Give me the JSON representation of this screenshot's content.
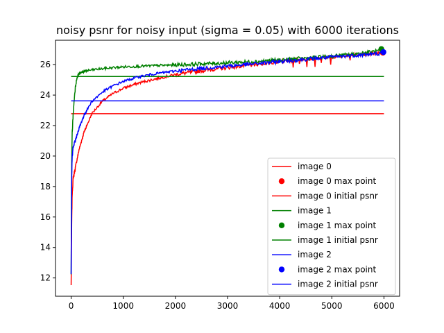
{
  "chart_data": {
    "type": "line",
    "title": "noisy psnr for noisy input (sigma = 0.05) with 6000 iterations",
    "xlabel": "",
    "ylabel": "",
    "xlim": [
      -300,
      6300
    ],
    "ylim": [
      10.8,
      27.6
    ],
    "xticks": [
      0,
      1000,
      2000,
      3000,
      4000,
      5000,
      6000
    ],
    "yticks": [
      12,
      14,
      16,
      18,
      20,
      22,
      24,
      26
    ],
    "grid": false,
    "legend_position": "lower-right",
    "series": [
      {
        "name": "image 0",
        "color": "#ff0000",
        "points": [
          [
            0,
            11.5
          ],
          [
            10,
            15.5
          ],
          [
            20,
            17.5
          ],
          [
            40,
            18.6
          ],
          [
            80,
            19.2
          ],
          [
            150,
            20.4
          ],
          [
            250,
            21.6
          ],
          [
            400,
            22.8
          ],
          [
            600,
            23.6
          ],
          [
            800,
            24.1
          ],
          [
            1000,
            24.45
          ],
          [
            1300,
            24.8
          ],
          [
            1600,
            25.05
          ],
          [
            2000,
            25.35
          ],
          [
            2500,
            25.6
          ],
          [
            3000,
            25.8
          ],
          [
            3500,
            26.0
          ],
          [
            4000,
            26.2
          ],
          [
            4500,
            26.35
          ],
          [
            5000,
            26.5
          ],
          [
            5500,
            26.65
          ],
          [
            6000,
            26.8
          ]
        ],
        "max_point": [
          5980,
          26.78
        ],
        "initial_psnr": 22.78
      },
      {
        "name": "image 1",
        "color": "#008000",
        "points": [
          [
            0,
            12.3
          ],
          [
            10,
            19.5
          ],
          [
            20,
            21.5
          ],
          [
            40,
            22.8
          ],
          [
            70,
            24.2
          ],
          [
            100,
            25.0
          ],
          [
            140,
            25.35
          ],
          [
            200,
            25.5
          ],
          [
            300,
            25.6
          ],
          [
            500,
            25.7
          ],
          [
            800,
            25.8
          ],
          [
            1000,
            25.85
          ],
          [
            1500,
            25.92
          ],
          [
            2000,
            25.98
          ],
          [
            2500,
            26.05
          ],
          [
            3000,
            26.12
          ],
          [
            3500,
            26.2
          ],
          [
            4000,
            26.3
          ],
          [
            4500,
            26.42
          ],
          [
            5000,
            26.55
          ],
          [
            5500,
            26.72
          ],
          [
            6000,
            26.95
          ]
        ],
        "max_point": [
          5950,
          27.02
        ],
        "initial_psnr": 25.22
      },
      {
        "name": "image 2",
        "color": "#0000ff",
        "points": [
          [
            0,
            12.3
          ],
          [
            10,
            18.5
          ],
          [
            20,
            20.0
          ],
          [
            40,
            20.6
          ],
          [
            80,
            21.0
          ],
          [
            150,
            21.8
          ],
          [
            250,
            22.7
          ],
          [
            400,
            23.6
          ],
          [
            600,
            24.2
          ],
          [
            800,
            24.6
          ],
          [
            1000,
            24.9
          ],
          [
            1300,
            25.2
          ],
          [
            1600,
            25.4
          ],
          [
            2000,
            25.58
          ],
          [
            2500,
            25.75
          ],
          [
            3000,
            25.9
          ],
          [
            3500,
            26.05
          ],
          [
            4000,
            26.2
          ],
          [
            4500,
            26.35
          ],
          [
            5000,
            26.5
          ],
          [
            5500,
            26.62
          ],
          [
            6000,
            26.75
          ]
        ],
        "max_point": [
          5990,
          26.82
        ],
        "initial_psnr": 23.62
      }
    ],
    "legend": [
      {
        "label": "image 0",
        "kind": "line",
        "color": "#ff0000"
      },
      {
        "label": "image 0 max point",
        "kind": "marker",
        "color": "#ff0000"
      },
      {
        "label": "image 0 initial psnr",
        "kind": "line",
        "color": "#ff0000"
      },
      {
        "label": "image 1",
        "kind": "line",
        "color": "#008000"
      },
      {
        "label": "image 1 max point",
        "kind": "marker",
        "color": "#008000"
      },
      {
        "label": "image 1 initial psnr",
        "kind": "line",
        "color": "#008000"
      },
      {
        "label": "image 2",
        "kind": "line",
        "color": "#0000ff"
      },
      {
        "label": "image 2 max point",
        "kind": "marker",
        "color": "#0000ff"
      },
      {
        "label": "image 2 initial psnr",
        "kind": "line",
        "color": "#0000ff"
      }
    ]
  }
}
